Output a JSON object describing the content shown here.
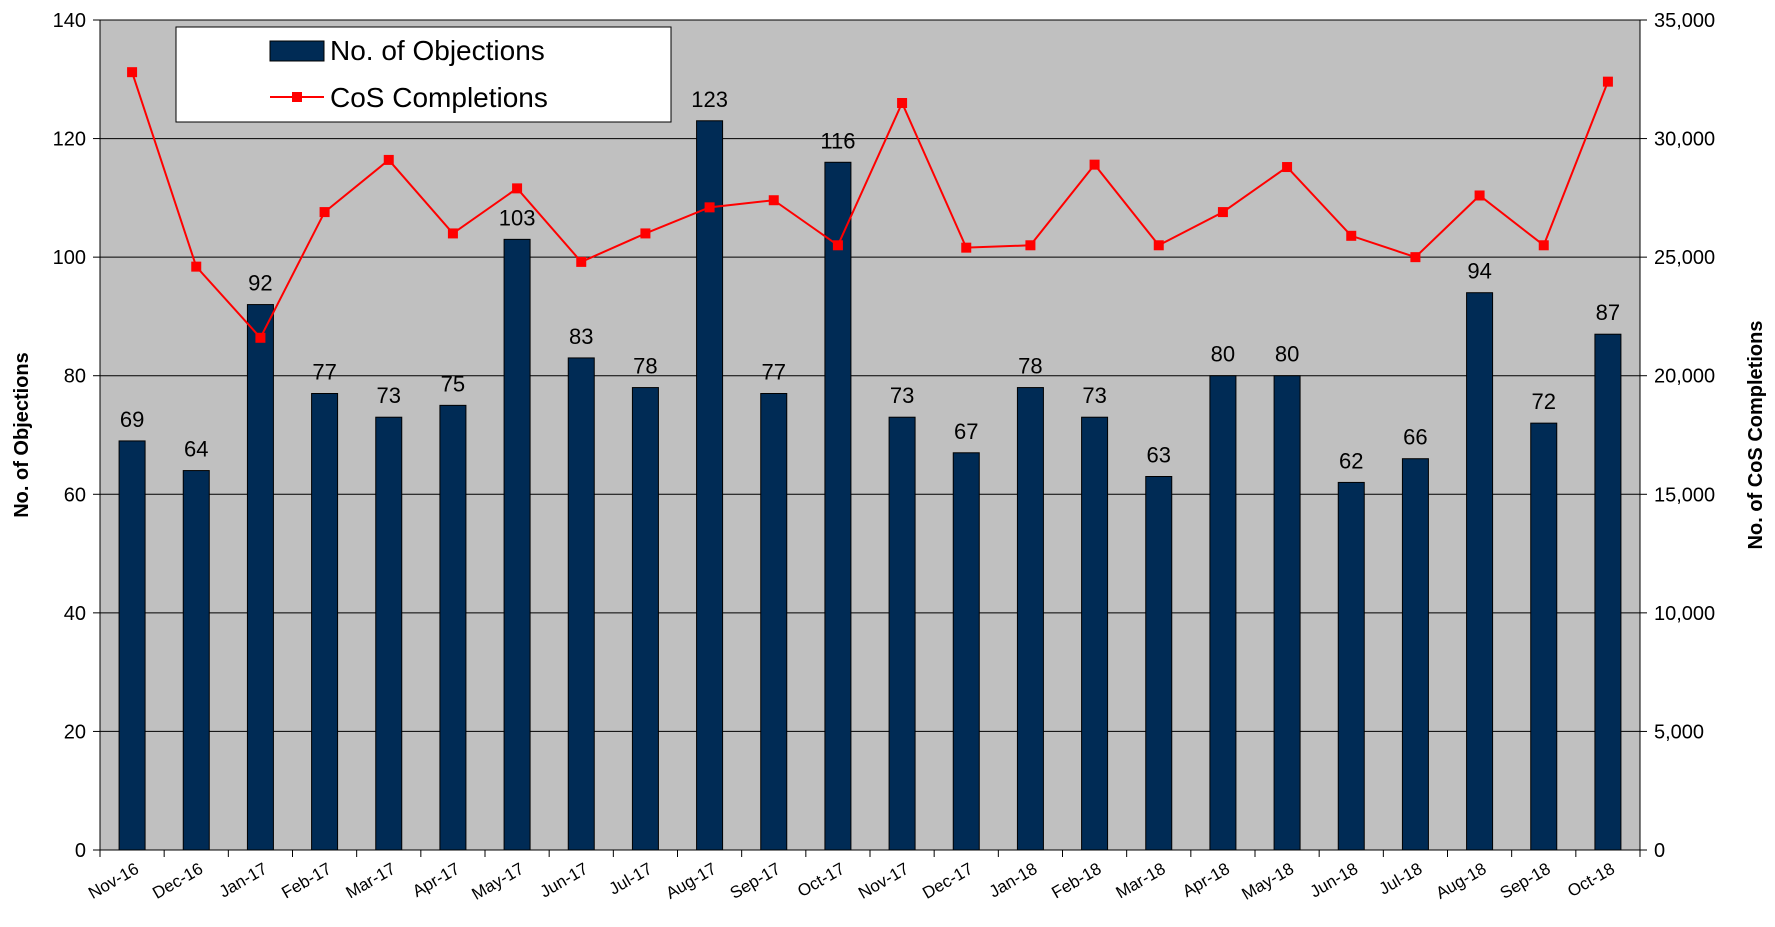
{
  "chart_data": {
    "type": "bar",
    "title": "",
    "categories": [
      "Nov-16",
      "Dec-16",
      "Jan-17",
      "Feb-17",
      "Mar-17",
      "Apr-17",
      "May-17",
      "Jun-17",
      "Jul-17",
      "Aug-17",
      "Sep-17",
      "Oct-17",
      "Nov-17",
      "Dec-17",
      "Jan-18",
      "Feb-18",
      "Mar-18",
      "Apr-18",
      "May-18",
      "Jun-18",
      "Jul-18",
      "Aug-18",
      "Sep-18",
      "Oct-18"
    ],
    "series": [
      {
        "name": "No. of Objections",
        "type": "bar",
        "axis": "left",
        "color": "#002b55",
        "values": [
          69,
          64,
          92,
          77,
          73,
          75,
          103,
          83,
          78,
          123,
          77,
          116,
          73,
          67,
          78,
          73,
          63,
          80,
          80,
          62,
          66,
          94,
          72,
          87
        ]
      },
      {
        "name": "CoS Completions",
        "type": "line",
        "axis": "right",
        "color": "#ff0000",
        "values": [
          32800,
          24600,
          21600,
          26900,
          29100,
          26000,
          27900,
          24800,
          26000,
          27100,
          27400,
          25500,
          31500,
          25400,
          25500,
          28900,
          25500,
          26900,
          28800,
          25900,
          25000,
          27600,
          25500,
          32400
        ]
      }
    ],
    "ylabel": "No. of Objections",
    "y2label": "No. of CoS Completions",
    "ylim": [
      0,
      140
    ],
    "y2lim": [
      0,
      35000
    ],
    "yticks": [
      "0",
      "20",
      "40",
      "60",
      "80",
      "100",
      "120",
      "140"
    ],
    "y2ticks": [
      "0",
      "5,000",
      "10,000",
      "15,000",
      "20,000",
      "25,000",
      "30,000",
      "35,000"
    ],
    "grid": true,
    "plot_background": "#c0c0c0",
    "legend_position": "top-left"
  }
}
